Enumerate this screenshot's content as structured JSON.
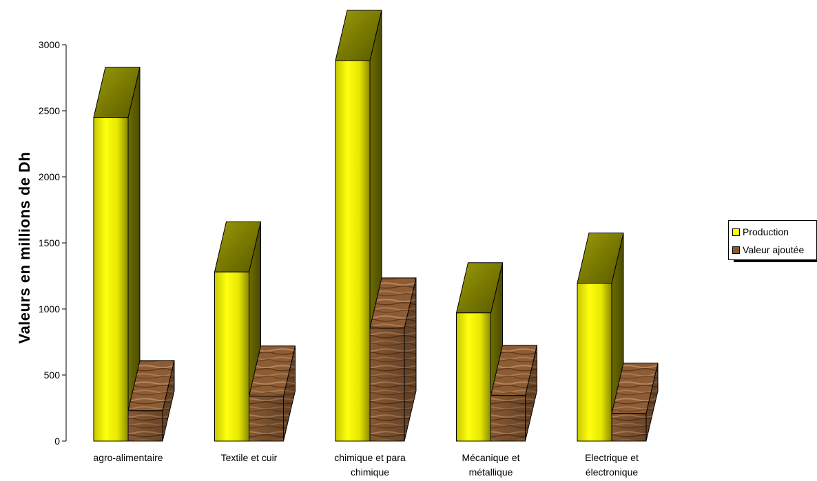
{
  "chart_data": {
    "type": "bar",
    "ylabel": "Valeurs en millions de Dh",
    "xlabel": "",
    "title": "",
    "ylim": [
      0,
      3000
    ],
    "yticks": [
      0,
      500,
      1000,
      1500,
      2000,
      2500,
      3000
    ],
    "categories": [
      [
        "agro-alimentaire"
      ],
      [
        "Textile et cuir"
      ],
      [
        "chimique et para",
        "chimique"
      ],
      [
        "Mécanique et",
        "métallique"
      ],
      [
        "Electrique et",
        "électronique"
      ]
    ],
    "series": [
      {
        "name": "Production",
        "values": [
          2450,
          1280,
          2880,
          970,
          1195
        ]
      },
      {
        "name": "Valeur ajoutée",
        "values": [
          230,
          340,
          855,
          345,
          210
        ]
      }
    ],
    "legend_position": "right",
    "grid": false,
    "colors": {
      "production": "#ffff00",
      "valeur_ajoutee": "#8b5a2b"
    }
  }
}
